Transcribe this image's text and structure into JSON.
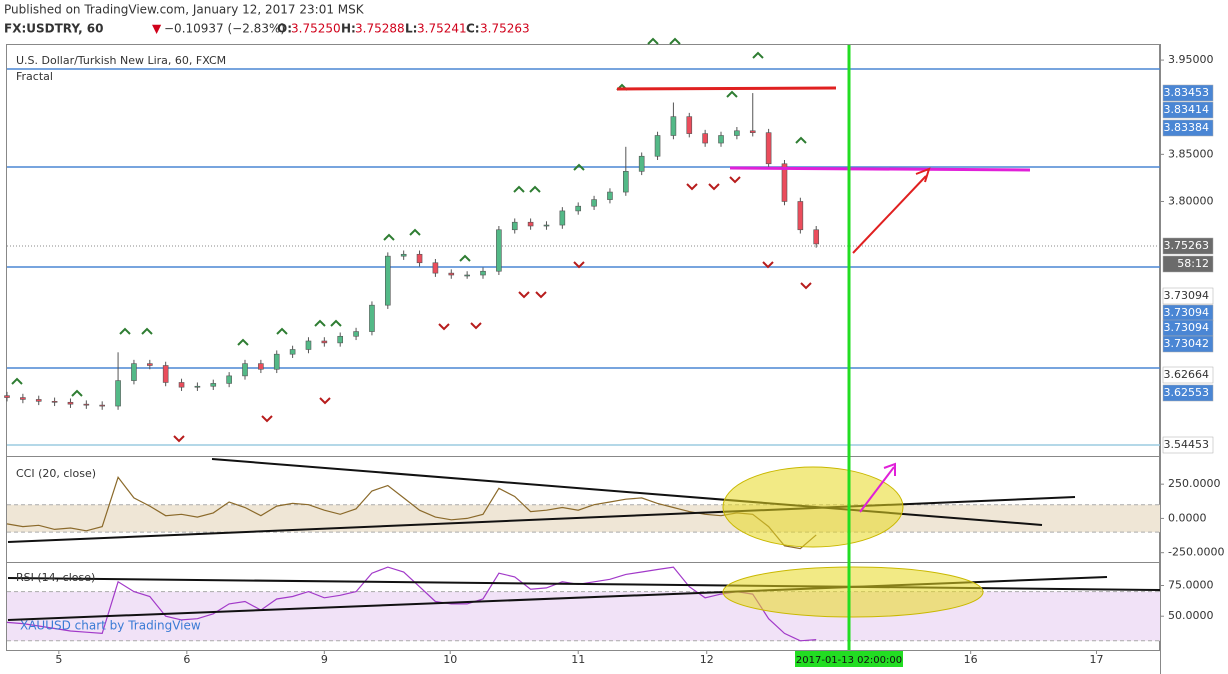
{
  "header": {
    "published": "Published on TradingView.com, January 12, 2017 23:01 MSK",
    "symbol": "FX:USDTRY, 60",
    "arrow": "▼",
    "change": "−0.10937 (−2.83%)",
    "ohlc": [
      {
        "key": "O:",
        "value": "3.75250"
      },
      {
        "key": "H:",
        "value": "3.75288"
      },
      {
        "key": "L:",
        "value": "3.75241"
      },
      {
        "key": "C:",
        "value": "3.75263"
      }
    ]
  },
  "watermark": "XAUUSD chart by TradingView",
  "price_badges": [
    {
      "text": "3.83453",
      "color": "#4a86d4"
    },
    {
      "text": "3.83414",
      "color": "#4a86d4"
    },
    {
      "text": "3.83384",
      "color": "#4a86d4"
    },
    {
      "text": "3.75263",
      "color": "#6b6b6b"
    },
    {
      "text": "58:12",
      "color": "#6b6b6b"
    },
    {
      "text": "3.73094",
      "color": "#ffffff"
    },
    {
      "text": "3.73094",
      "color": "#4a86d4"
    },
    {
      "text": "3.73094",
      "color": "#4a86d4"
    },
    {
      "text": "3.73042",
      "color": "#4a86d4"
    },
    {
      "text": "3.62664",
      "color": "#ffffff"
    },
    {
      "text": "3.62553",
      "color": "#4a86d4"
    },
    {
      "text": "3.54453",
      "color": "#ffffff"
    }
  ],
  "chart_data": [
    {
      "type": "candlestick",
      "title": "U.S. Dollar/Turkish New Lira, 60, FXCM",
      "indicator": "Fractal",
      "up_color": "#53b987",
      "down_color": "#eb4d5c",
      "x": [
        0,
        3,
        6,
        9,
        12,
        15,
        18,
        21,
        24,
        27,
        30,
        33,
        36,
        39,
        42,
        45,
        48,
        51,
        54,
        57,
        60,
        63,
        66,
        69,
        72,
        75,
        78,
        81,
        84,
        87,
        90,
        93,
        96,
        99,
        102,
        105,
        108,
        111,
        114,
        117,
        120,
        123,
        126,
        129,
        132,
        135,
        138,
        141,
        144,
        147,
        150,
        153
      ],
      "open": [
        3.594,
        3.592,
        3.59,
        3.588,
        3.587,
        3.585,
        3.584,
        3.583,
        3.61,
        3.628,
        3.626,
        3.608,
        3.603,
        3.604,
        3.607,
        3.615,
        3.628,
        3.622,
        3.638,
        3.643,
        3.652,
        3.65,
        3.657,
        3.662,
        3.69,
        3.742,
        3.744,
        3.735,
        3.724,
        3.722,
        3.722,
        3.726,
        3.77,
        3.778,
        3.774,
        3.775,
        3.79,
        3.795,
        3.802,
        3.81,
        3.832,
        3.848,
        3.87,
        3.89,
        3.872,
        3.862,
        3.87,
        3.875,
        3.873,
        3.84,
        3.8,
        3.77
      ],
      "high": [
        3.598,
        3.596,
        3.594,
        3.592,
        3.591,
        3.589,
        3.588,
        3.64,
        3.632,
        3.632,
        3.63,
        3.612,
        3.608,
        3.611,
        3.619,
        3.632,
        3.632,
        3.642,
        3.647,
        3.656,
        3.656,
        3.661,
        3.666,
        3.694,
        3.746,
        3.748,
        3.748,
        3.739,
        3.728,
        3.726,
        3.73,
        3.774,
        3.782,
        3.782,
        3.779,
        3.794,
        3.799,
        3.806,
        3.814,
        3.858,
        3.852,
        3.874,
        3.905,
        3.894,
        3.876,
        3.874,
        3.879,
        3.915,
        3.877,
        3.844,
        3.804,
        3.774
      ],
      "low": [
        3.588,
        3.586,
        3.584,
        3.583,
        3.581,
        3.58,
        3.579,
        3.579,
        3.606,
        3.622,
        3.604,
        3.599,
        3.599,
        3.6,
        3.603,
        3.611,
        3.618,
        3.618,
        3.634,
        3.639,
        3.646,
        3.646,
        3.653,
        3.658,
        3.686,
        3.738,
        3.731,
        3.72,
        3.718,
        3.718,
        3.718,
        3.722,
        3.766,
        3.77,
        3.77,
        3.771,
        3.786,
        3.791,
        3.798,
        3.806,
        3.828,
        3.844,
        3.866,
        3.868,
        3.858,
        3.858,
        3.866,
        3.869,
        3.836,
        3.796,
        3.766,
        3.751
      ],
      "close": [
        3.592,
        3.59,
        3.588,
        3.587,
        3.585,
        3.584,
        3.583,
        3.61,
        3.628,
        3.626,
        3.608,
        3.603,
        3.604,
        3.607,
        3.615,
        3.628,
        3.622,
        3.638,
        3.643,
        3.652,
        3.65,
        3.657,
        3.662,
        3.69,
        3.742,
        3.744,
        3.735,
        3.724,
        3.722,
        3.722,
        3.726,
        3.77,
        3.778,
        3.774,
        3.775,
        3.79,
        3.795,
        3.802,
        3.81,
        3.832,
        3.848,
        3.87,
        3.89,
        3.872,
        3.862,
        3.87,
        3.875,
        3.873,
        3.84,
        3.8,
        3.77,
        3.755
      ],
      "xlim": [
        0,
        218
      ],
      "ylim": [
        3.53,
        3.966
      ],
      "yticks": [
        {
          "value": 3.95,
          "label": "3.95000"
        },
        {
          "value": 3.85,
          "label": "3.85000"
        },
        {
          "value": 3.8,
          "label": "3.80000"
        }
      ],
      "xticks": [
        {
          "value": 9.8,
          "label": "5"
        },
        {
          "value": 34,
          "label": "6"
        },
        {
          "value": 60,
          "label": "9"
        },
        {
          "value": 83.8,
          "label": "10"
        },
        {
          "value": 108,
          "label": "11"
        },
        {
          "value": 132.3,
          "label": "12"
        },
        {
          "value": 182.2,
          "label": "16"
        },
        {
          "value": 206,
          "label": "17"
        }
      ],
      "cursor": {
        "x": 159.2,
        "label": "2017-01-13 02:00:00"
      }
    },
    {
      "type": "line",
      "title": "CCI (20, close)",
      "color": "#8b6a2b",
      "band": [
        -100,
        100
      ],
      "band_color": "#efe6d6",
      "values": [
        -40,
        -60,
        -50,
        -80,
        -70,
        -90,
        -60,
        300,
        150,
        90,
        20,
        30,
        10,
        40,
        120,
        80,
        20,
        90,
        110,
        100,
        60,
        30,
        70,
        200,
        240,
        150,
        60,
        10,
        -10,
        0,
        30,
        220,
        160,
        50,
        60,
        80,
        60,
        100,
        120,
        140,
        150,
        110,
        80,
        50,
        30,
        20,
        40,
        30,
        -60,
        -200,
        -220,
        -120
      ],
      "ylim": [
        -318,
        441
      ],
      "yticks": [
        {
          "value": 250,
          "label": "250.0000"
        },
        {
          "value": 0,
          "label": "0.0000"
        },
        {
          "value": -250,
          "label": "-250.0000"
        }
      ]
    },
    {
      "type": "line",
      "title": "RSI (14, close)",
      "color": "#a23ac9",
      "band": [
        30,
        70
      ],
      "band_color": "#f1e2f7",
      "values": [
        45,
        44,
        42,
        40,
        38,
        37,
        36,
        78,
        70,
        66,
        50,
        47,
        48,
        52,
        60,
        62,
        55,
        64,
        66,
        70,
        65,
        67,
        70,
        85,
        90,
        86,
        74,
        62,
        60,
        60,
        64,
        85,
        82,
        72,
        73,
        78,
        76,
        78,
        80,
        84,
        86,
        88,
        90,
        74,
        65,
        68,
        70,
        68,
        48,
        36,
        30,
        31
      ],
      "ylim": [
        22.5,
        93.3
      ],
      "yticks": [
        {
          "value": 75,
          "label": "75.0000"
        },
        {
          "value": 50,
          "label": "50.0000"
        }
      ]
    }
  ]
}
